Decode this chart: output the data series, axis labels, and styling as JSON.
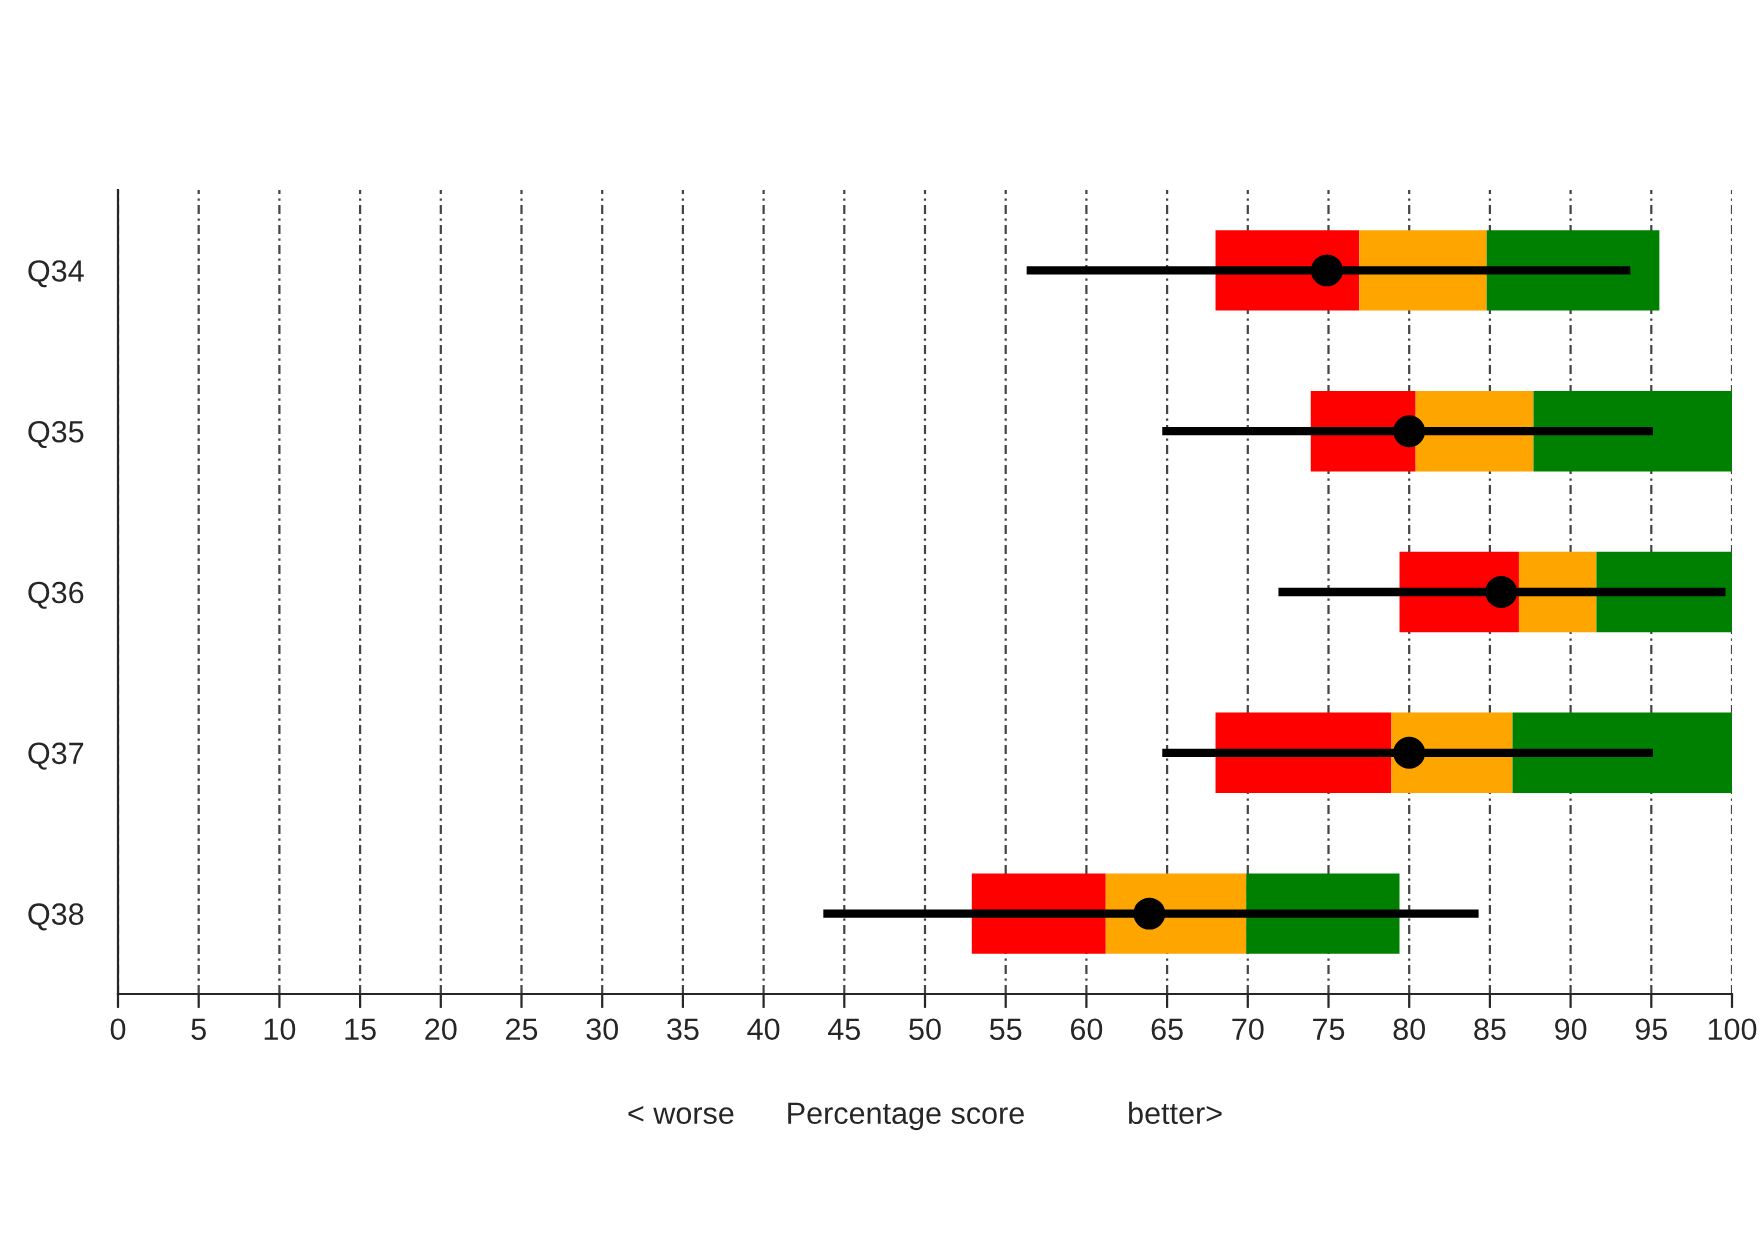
{
  "chart_data": {
    "type": "bar",
    "orientation": "horizontal",
    "xlabel": "< worse      Percentage score            better>",
    "categories": [
      "Q34",
      "Q35",
      "Q36",
      "Q37",
      "Q38"
    ],
    "series": [
      {
        "color": "#ff0000",
        "base": [
          68.0,
          73.9,
          79.4,
          68.0,
          52.9
        ],
        "values": [
          8.9,
          6.5,
          7.4,
          10.9,
          8.3
        ]
      },
      {
        "color": "#ffa500",
        "base": [
          76.9,
          80.4,
          86.8,
          78.9,
          61.2
        ],
        "values": [
          7.9,
          7.3,
          4.8,
          7.5,
          8.7
        ]
      },
      {
        "color": "#008000",
        "base": [
          84.8,
          87.7,
          91.6,
          86.4,
          69.9
        ],
        "values": [
          10.7,
          12.3,
          8.4,
          13.6,
          9.5
        ]
      },
      {
        "type": "scatter",
        "color": "#000000",
        "marker": "circle",
        "values": [
          74.9,
          80.0,
          85.7,
          80.0,
          63.9
        ],
        "errors": [
          [
            56.3,
            93.7
          ],
          [
            64.7,
            95.1
          ],
          [
            71.9,
            99.6
          ],
          [
            64.7,
            95.1
          ],
          [
            43.7,
            84.3
          ]
        ]
      }
    ],
    "xlim": [
      0,
      100
    ],
    "xticks": [
      0,
      5,
      10,
      15,
      20,
      25,
      30,
      35,
      40,
      45,
      50,
      55,
      60,
      65,
      70,
      75,
      80,
      85,
      90,
      95,
      100
    ],
    "grid": "x",
    "legend": false
  }
}
